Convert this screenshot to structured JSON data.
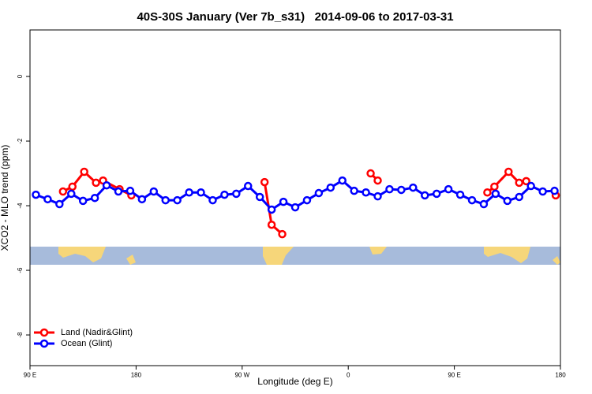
{
  "chart_data": {
    "type": "line",
    "title": "40S-30S January (Ver 7b_s31)   2014-09-06 to 2017-03-31",
    "x_label": "Longitude (deg E)",
    "y_label": "XCO2 - MLO trend (ppm)",
    "xlim": [
      90,
      540
    ],
    "ylim": [
      -8.95,
      1.44
    ],
    "xticks": [
      {
        "value": 90,
        "label": "90 E"
      },
      180,
      {
        "value": 270,
        "label": "90 W"
      },
      {
        "value": 360,
        "label": "0"
      },
      {
        "value": 450,
        "label": "90 E"
      },
      {
        "value": 540,
        "label": "180"
      }
    ],
    "yticks": [
      -8,
      -6,
      -4,
      -2,
      0
    ],
    "legend": "bottom-left",
    "series": [
      {
        "name": "Land (Nadir&Glint)",
        "color": "#ff0000",
        "x": [
          118,
          126,
          136,
          146,
          152,
          166,
          176,
          null,
          289,
          295,
          304,
          null,
          379,
          385,
          null,
          478,
          484,
          496,
          505,
          511,
          null,
          536
        ],
        "values": [
          -3.56,
          -3.41,
          -2.95,
          -3.29,
          -3.22,
          -3.49,
          -3.68,
          null,
          -3.27,
          -4.59,
          -4.88,
          null,
          -3.0,
          -3.22,
          null,
          -3.59,
          -3.41,
          -2.95,
          -3.29,
          -3.24,
          null,
          -3.68
        ]
      },
      {
        "name": "Ocean (Glint)",
        "color": "#0000ff",
        "x": [
          95,
          105,
          115,
          125,
          135,
          145,
          155,
          165,
          175,
          185,
          195,
          205,
          215,
          225,
          235,
          245,
          255,
          265,
          275,
          285,
          295,
          305,
          315,
          325,
          335,
          345,
          355,
          365,
          375,
          385,
          395,
          405,
          415,
          425,
          435,
          445,
          455,
          465,
          475,
          485,
          495,
          505,
          515,
          525,
          535
        ],
        "values": [
          -3.66,
          -3.8,
          -3.95,
          -3.63,
          -3.85,
          -3.76,
          -3.37,
          -3.56,
          -3.54,
          -3.8,
          -3.56,
          -3.83,
          -3.83,
          -3.59,
          -3.59,
          -3.83,
          -3.66,
          -3.63,
          -3.39,
          -3.73,
          -4.12,
          -3.88,
          -4.05,
          -3.83,
          -3.61,
          -3.44,
          -3.22,
          -3.54,
          -3.59,
          -3.71,
          -3.49,
          -3.51,
          -3.44,
          -3.68,
          -3.63,
          -3.49,
          -3.66,
          -3.83,
          -3.95,
          -3.63,
          -3.85,
          -3.73,
          -3.39,
          -3.56,
          -3.54
        ]
      }
    ]
  }
}
